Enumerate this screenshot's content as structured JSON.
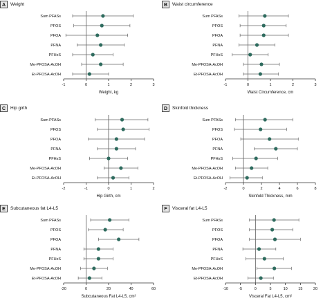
{
  "chart_data": [
    {
      "type": "forest",
      "letter": "A",
      "title": "Weight",
      "xlabel": "Weight, kg",
      "xlim": [
        -1,
        3
      ],
      "xticks": [
        -1,
        0,
        1,
        2,
        3
      ],
      "ref_line": 0,
      "categories": [
        "Sum PFASs",
        "PFOS",
        "PFOA",
        "PFNA",
        "PFHxS",
        "Me-PFOSA-AcOH",
        "Et-PFOSA-AcOH"
      ],
      "estimates": [
        0.75,
        0.7,
        0.5,
        0.65,
        0.3,
        0.65,
        0.15
      ],
      "ci_low": [
        -0.6,
        -0.55,
        -0.9,
        -0.4,
        -0.6,
        -0.2,
        -0.6
      ],
      "ci_high": [
        2.1,
        1.95,
        1.85,
        1.7,
        1.2,
        1.65,
        1.0
      ]
    },
    {
      "type": "forest",
      "letter": "B",
      "title": "Waist circumference",
      "xlabel": "Waist Circumference, cm",
      "xlim": [
        -1,
        3
      ],
      "xticks": [
        -1,
        0,
        1,
        2,
        3
      ],
      "ref_line": 0,
      "categories": [
        "Sum PFASs",
        "PFOS",
        "PFOA",
        "PFNA",
        "PFHxS",
        "Me-PFOSA-AcOH",
        "Et-PFOSA-AcOH"
      ],
      "estimates": [
        0.75,
        0.7,
        0.7,
        0.4,
        0.1,
        0.6,
        0.55
      ],
      "ci_low": [
        -0.4,
        -0.35,
        -0.35,
        -0.4,
        -0.7,
        -0.2,
        -0.2
      ],
      "ci_high": [
        1.8,
        1.7,
        1.8,
        1.2,
        0.9,
        1.4,
        1.35
      ]
    },
    {
      "type": "forest",
      "letter": "C",
      "title": "Hip girth",
      "xlabel": "Hip Girth, cm",
      "xlim": [
        -2,
        2
      ],
      "xticks": [
        -2,
        -1,
        0,
        1,
        2
      ],
      "ref_line": 0,
      "categories": [
        "Sum PFASs",
        "PFOS",
        "PFOA",
        "PFNA",
        "PFHxS",
        "Me-PFOSA-AcOH",
        "Et-PFOSA-AcOH"
      ],
      "estimates": [
        0.6,
        0.65,
        0.35,
        0.35,
        0.0,
        0.55,
        0.2
      ],
      "ci_low": [
        -0.6,
        -0.5,
        -0.9,
        -0.5,
        -0.85,
        -0.2,
        -0.5
      ],
      "ci_high": [
        1.75,
        1.8,
        1.6,
        1.2,
        0.85,
        1.3,
        0.9
      ]
    },
    {
      "type": "forest",
      "letter": "D",
      "title": "Skinfold thickness",
      "xlabel": "Skinfold Thickness, mm",
      "xlim": [
        -2,
        8
      ],
      "xticks": [
        -2,
        0,
        2,
        4,
        6,
        8
      ],
      "ref_line": 0,
      "categories": [
        "Sum PFASs",
        "PFOS",
        "PFOA",
        "PFNA",
        "PFHxS",
        "Me-PFOSA-AcOH",
        "Et-PFOSA-AcOH"
      ],
      "estimates": [
        2.4,
        1.9,
        2.9,
        3.6,
        1.4,
        0.9,
        0.4
      ],
      "ci_low": [
        -0.9,
        -1.0,
        -0.3,
        1.2,
        -1.2,
        -0.9,
        -1.5
      ],
      "ci_high": [
        5.5,
        4.8,
        6.1,
        6.0,
        3.8,
        2.7,
        2.1
      ]
    },
    {
      "type": "forest",
      "letter": "E",
      "title": "Subcutaneous fat L4-L5",
      "xlabel": "Subcutaneous Fat L4-L5, cm²",
      "xlim": [
        -20,
        60
      ],
      "xticks": [
        -20,
        0,
        20,
        40,
        60
      ],
      "ref_line": 0,
      "categories": [
        "Sum PFASs",
        "PFOS",
        "PFOA",
        "PFNA",
        "PFHxS",
        "Me-PFOSA-AcOH",
        "Et-PFOSA-AcOH"
      ],
      "estimates": [
        21,
        17,
        29,
        11,
        11,
        7,
        3
      ],
      "ci_low": [
        4,
        2,
        11,
        -2,
        -2,
        -5,
        -7
      ],
      "ci_high": [
        38,
        33,
        47,
        24,
        24,
        19,
        14
      ]
    },
    {
      "type": "forest",
      "letter": "F",
      "title": "Visceral fat L4-L5",
      "xlabel": "Visceral Fat L4-L5, cm²",
      "xlim": [
        -10,
        20
      ],
      "xticks": [
        -10,
        -5,
        0,
        5,
        10,
        15,
        20
      ],
      "ref_line": 0,
      "categories": [
        "Sum PFASs",
        "PFOS",
        "PFOA",
        "PFNA",
        "PFHxS",
        "Me-PFOSA-AcOH",
        "Et-PFOSA-AcOH"
      ],
      "estimates": [
        6.2,
        5.6,
        6.5,
        1.2,
        3.0,
        6.3,
        1.8
      ],
      "ci_low": [
        -2.0,
        -2.0,
        -2.0,
        -4.2,
        -3.2,
        0.5,
        -2.5
      ],
      "ci_high": [
        14.5,
        12.5,
        15.0,
        6.8,
        9.3,
        12.0,
        6.0
      ]
    }
  ],
  "colors": {
    "marker": "#2e6b5e",
    "ci_line": "#666666",
    "ref_line": "#555555",
    "axis": "#333333"
  }
}
